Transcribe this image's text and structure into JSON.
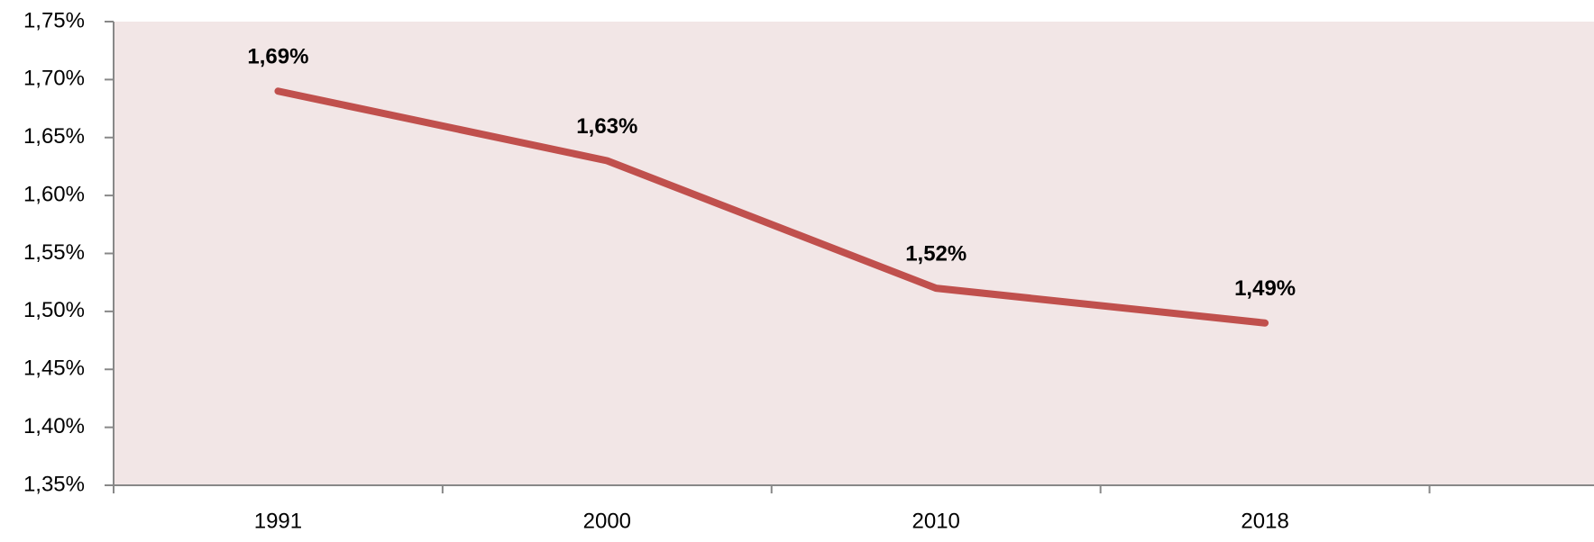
{
  "chart_data": {
    "type": "line",
    "categories": [
      "1991",
      "2000",
      "2010",
      "2018"
    ],
    "series": [
      {
        "color": "#c0504d",
        "values": [
          1.69,
          1.63,
          1.52,
          1.49
        ],
        "value_labels": [
          "1,69%",
          "1,63%",
          "1,52%",
          "1,49%"
        ]
      }
    ],
    "ylim": [
      1.35,
      1.75
    ],
    "yticks": [
      {
        "value": 1.35,
        "label": "1,35%"
      },
      {
        "value": 1.4,
        "label": "1,40%"
      },
      {
        "value": 1.45,
        "label": "1,45%"
      },
      {
        "value": 1.5,
        "label": "1,50%"
      },
      {
        "value": 1.55,
        "label": "1,55%"
      },
      {
        "value": 1.6,
        "label": "1,60%"
      },
      {
        "value": 1.65,
        "label": "1,65%"
      },
      {
        "value": 1.7,
        "label": "1,70%"
      },
      {
        "value": 1.75,
        "label": "1,75%"
      }
    ],
    "background": "#f2e6e6"
  }
}
